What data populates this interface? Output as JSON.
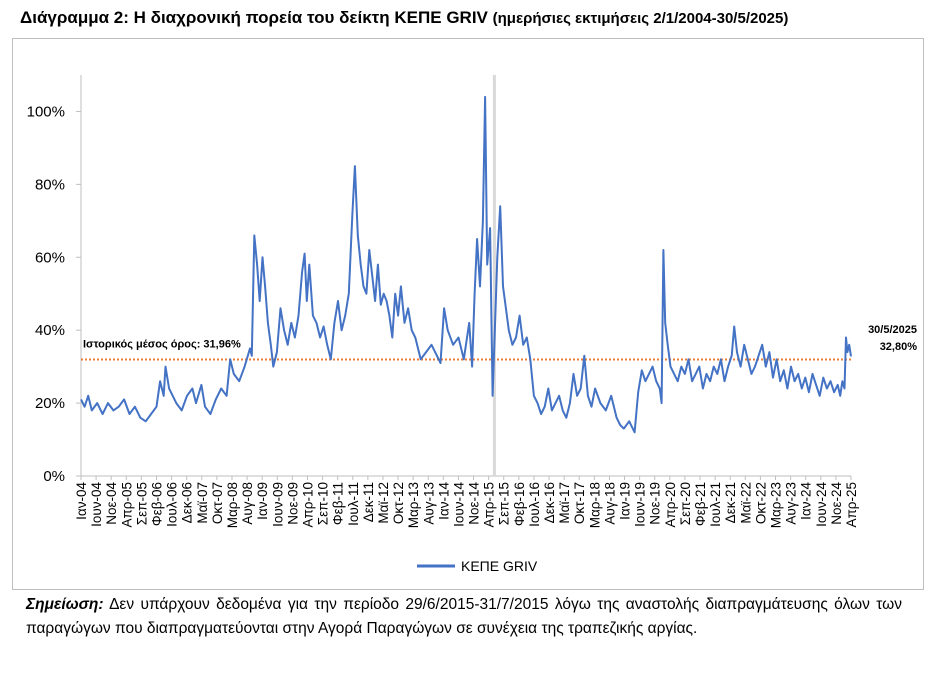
{
  "title": {
    "main": "Διάγραμμα 2: Η διαχρονική πορεία του δείκτη ΚΕΠΕ GRIV",
    "sub": "(ημερήσιες εκτιμήσεις 2/1/2004-30/5/2025)"
  },
  "chart_data": {
    "type": "line",
    "title": "Διάγραμμα 2: Η διαχρονική πορεία του δείκτη ΚΕΠΕ GRIV",
    "xlabel": "",
    "ylabel": "",
    "ylim": [
      0,
      110
    ],
    "y_ticks": [
      0,
      20,
      40,
      60,
      80,
      100
    ],
    "y_tick_labels": [
      "0%",
      "20%",
      "40%",
      "60%",
      "80%",
      "100%"
    ],
    "x_range": [
      2004.0,
      2025.42
    ],
    "x_tick_labels": [
      "Ιαν-04",
      "Ιουν-04",
      "Νοε-04",
      "Απρ-05",
      "Σεπ-05",
      "Φεβ-06",
      "Ιουλ-06",
      "Δεκ-06",
      "Μαϊ-07",
      "Οκτ-07",
      "Μαρ-08",
      "Αυγ-08",
      "Ιαν-09",
      "Ιουν-09",
      "Νοε-09",
      "Απρ-10",
      "Σεπ-10",
      "Φεβ-11",
      "Ιουλ-11",
      "Δεκ-11",
      "Μαϊ-12",
      "Οκτ-12",
      "Μαρ-13",
      "Αυγ-13",
      "Ιαν-14",
      "Ιουν-14",
      "Νοε-14",
      "Απρ-15",
      "Σεπ-15",
      "Φεβ-16",
      "Ιουλ-16",
      "Δεκ-16",
      "Μαϊ-17",
      "Οκτ-17",
      "Μαρ-18",
      "Αυγ-18",
      "Ιαν-19",
      "Ιουν-19",
      "Νοε-19",
      "Απρ-20",
      "Σεπ-20",
      "Φεβ-21",
      "Ιουλ-21",
      "Δεκ-21",
      "Μαϊ-22",
      "Οκτ-22",
      "Μαρ-23",
      "Αυγ-23",
      "Ιαν-24",
      "Ιουν-24",
      "Νοε-24",
      "Απρ-25"
    ],
    "grid": false,
    "legend_position": "bottom",
    "series": [
      {
        "name": "ΚΕΠΕ GRIV",
        "color": "#4472c4",
        "points": [
          [
            2004.0,
            21
          ],
          [
            2004.1,
            19
          ],
          [
            2004.2,
            22
          ],
          [
            2004.3,
            18
          ],
          [
            2004.45,
            20
          ],
          [
            2004.6,
            17
          ],
          [
            2004.75,
            20
          ],
          [
            2004.9,
            18
          ],
          [
            2005.05,
            19
          ],
          [
            2005.2,
            21
          ],
          [
            2005.35,
            17
          ],
          [
            2005.5,
            19
          ],
          [
            2005.65,
            16
          ],
          [
            2005.8,
            15
          ],
          [
            2005.95,
            17
          ],
          [
            2006.1,
            19
          ],
          [
            2006.2,
            26
          ],
          [
            2006.3,
            22
          ],
          [
            2006.35,
            30
          ],
          [
            2006.45,
            24
          ],
          [
            2006.55,
            22
          ],
          [
            2006.65,
            20
          ],
          [
            2006.8,
            18
          ],
          [
            2006.95,
            22
          ],
          [
            2007.1,
            24
          ],
          [
            2007.2,
            20
          ],
          [
            2007.35,
            25
          ],
          [
            2007.45,
            19
          ],
          [
            2007.6,
            17
          ],
          [
            2007.75,
            21
          ],
          [
            2007.9,
            24
          ],
          [
            2008.05,
            22
          ],
          [
            2008.15,
            32
          ],
          [
            2008.25,
            28
          ],
          [
            2008.4,
            26
          ],
          [
            2008.55,
            30
          ],
          [
            2008.7,
            35
          ],
          [
            2008.75,
            33
          ],
          [
            2008.82,
            66
          ],
          [
            2008.9,
            58
          ],
          [
            2008.97,
            48
          ],
          [
            2009.05,
            60
          ],
          [
            2009.12,
            52
          ],
          [
            2009.2,
            42
          ],
          [
            2009.28,
            36
          ],
          [
            2009.35,
            30
          ],
          [
            2009.45,
            34
          ],
          [
            2009.55,
            46
          ],
          [
            2009.65,
            40
          ],
          [
            2009.75,
            36
          ],
          [
            2009.85,
            42
          ],
          [
            2009.95,
            38
          ],
          [
            2010.05,
            44
          ],
          [
            2010.15,
            56
          ],
          [
            2010.22,
            61
          ],
          [
            2010.28,
            48
          ],
          [
            2010.35,
            58
          ],
          [
            2010.45,
            44
          ],
          [
            2010.55,
            42
          ],
          [
            2010.65,
            38
          ],
          [
            2010.75,
            41
          ],
          [
            2010.85,
            36
          ],
          [
            2010.95,
            32
          ],
          [
            2011.05,
            42
          ],
          [
            2011.15,
            48
          ],
          [
            2011.25,
            40
          ],
          [
            2011.35,
            44
          ],
          [
            2011.45,
            50
          ],
          [
            2011.55,
            72
          ],
          [
            2011.62,
            85
          ],
          [
            2011.7,
            66
          ],
          [
            2011.78,
            58
          ],
          [
            2011.86,
            52
          ],
          [
            2011.94,
            50
          ],
          [
            2012.02,
            62
          ],
          [
            2012.1,
            55
          ],
          [
            2012.18,
            48
          ],
          [
            2012.26,
            58
          ],
          [
            2012.34,
            47
          ],
          [
            2012.42,
            50
          ],
          [
            2012.5,
            48
          ],
          [
            2012.58,
            44
          ],
          [
            2012.66,
            38
          ],
          [
            2012.74,
            50
          ],
          [
            2012.82,
            44
          ],
          [
            2012.9,
            52
          ],
          [
            2013.0,
            42
          ],
          [
            2013.1,
            46
          ],
          [
            2013.2,
            40
          ],
          [
            2013.3,
            38
          ],
          [
            2013.45,
            32
          ],
          [
            2013.6,
            34
          ],
          [
            2013.75,
            36
          ],
          [
            2013.9,
            33
          ],
          [
            2014.0,
            31
          ],
          [
            2014.1,
            46
          ],
          [
            2014.2,
            40
          ],
          [
            2014.35,
            36
          ],
          [
            2014.5,
            38
          ],
          [
            2014.65,
            32
          ],
          [
            2014.8,
            42
          ],
          [
            2014.88,
            30
          ],
          [
            2014.95,
            50
          ],
          [
            2015.02,
            65
          ],
          [
            2015.1,
            52
          ],
          [
            2015.18,
            70
          ],
          [
            2015.24,
            104
          ],
          [
            2015.3,
            58
          ],
          [
            2015.38,
            68
          ],
          [
            2015.45,
            22
          ],
          [
            2015.58,
            60
          ],
          [
            2015.66,
            74
          ],
          [
            2015.74,
            52
          ],
          [
            2015.82,
            46
          ],
          [
            2015.9,
            40
          ],
          [
            2016.0,
            36
          ],
          [
            2016.1,
            38
          ],
          [
            2016.2,
            44
          ],
          [
            2016.3,
            36
          ],
          [
            2016.4,
            38
          ],
          [
            2016.5,
            32
          ],
          [
            2016.6,
            22
          ],
          [
            2016.7,
            20
          ],
          [
            2016.8,
            17
          ],
          [
            2016.9,
            19
          ],
          [
            2017.0,
            24
          ],
          [
            2017.1,
            18
          ],
          [
            2017.2,
            20
          ],
          [
            2017.3,
            22
          ],
          [
            2017.4,
            18
          ],
          [
            2017.5,
            16
          ],
          [
            2017.6,
            20
          ],
          [
            2017.7,
            28
          ],
          [
            2017.8,
            22
          ],
          [
            2017.9,
            24
          ],
          [
            2018.0,
            33
          ],
          [
            2018.1,
            22
          ],
          [
            2018.2,
            19
          ],
          [
            2018.3,
            24
          ],
          [
            2018.45,
            20
          ],
          [
            2018.6,
            18
          ],
          [
            2018.75,
            22
          ],
          [
            2018.9,
            16
          ],
          [
            2019.0,
            14
          ],
          [
            2019.1,
            13
          ],
          [
            2019.25,
            15
          ],
          [
            2019.4,
            12
          ],
          [
            2019.5,
            23
          ],
          [
            2019.6,
            29
          ],
          [
            2019.7,
            26
          ],
          [
            2019.8,
            28
          ],
          [
            2019.9,
            30
          ],
          [
            2020.0,
            26
          ],
          [
            2020.1,
            24
          ],
          [
            2020.15,
            20
          ],
          [
            2020.2,
            62
          ],
          [
            2020.25,
            42
          ],
          [
            2020.32,
            36
          ],
          [
            2020.4,
            30
          ],
          [
            2020.5,
            28
          ],
          [
            2020.6,
            26
          ],
          [
            2020.7,
            30
          ],
          [
            2020.8,
            28
          ],
          [
            2020.9,
            32
          ],
          [
            2021.0,
            26
          ],
          [
            2021.1,
            28
          ],
          [
            2021.2,
            30
          ],
          [
            2021.3,
            24
          ],
          [
            2021.4,
            28
          ],
          [
            2021.5,
            26
          ],
          [
            2021.6,
            30
          ],
          [
            2021.7,
            28
          ],
          [
            2021.8,
            32
          ],
          [
            2021.9,
            26
          ],
          [
            2022.0,
            30
          ],
          [
            2022.1,
            33
          ],
          [
            2022.17,
            41
          ],
          [
            2022.25,
            34
          ],
          [
            2022.35,
            30
          ],
          [
            2022.45,
            36
          ],
          [
            2022.55,
            32
          ],
          [
            2022.65,
            28
          ],
          [
            2022.75,
            30
          ],
          [
            2022.85,
            33
          ],
          [
            2022.95,
            36
          ],
          [
            2023.05,
            30
          ],
          [
            2023.15,
            34
          ],
          [
            2023.25,
            27
          ],
          [
            2023.35,
            32
          ],
          [
            2023.45,
            26
          ],
          [
            2023.55,
            29
          ],
          [
            2023.65,
            24
          ],
          [
            2023.75,
            30
          ],
          [
            2023.85,
            26
          ],
          [
            2023.95,
            28
          ],
          [
            2024.05,
            24
          ],
          [
            2024.15,
            27
          ],
          [
            2024.25,
            23
          ],
          [
            2024.35,
            28
          ],
          [
            2024.45,
            25
          ],
          [
            2024.55,
            22
          ],
          [
            2024.65,
            27
          ],
          [
            2024.75,
            24
          ],
          [
            2024.85,
            26
          ],
          [
            2024.95,
            23
          ],
          [
            2025.05,
            25
          ],
          [
            2025.12,
            22
          ],
          [
            2025.18,
            26
          ],
          [
            2025.24,
            24
          ],
          [
            2025.28,
            38
          ],
          [
            2025.32,
            34
          ],
          [
            2025.37,
            36
          ],
          [
            2025.42,
            32.8
          ]
        ]
      }
    ],
    "average_line": {
      "value": 31.96,
      "label": "Ιστορικός μέσος όρος: 31,96%",
      "color": "#ed7d31"
    },
    "gap_marker": {
      "x": 2015.5,
      "color": "#d9d9d9"
    },
    "end_annotation": {
      "date": "30/5/2025",
      "value_label": "32,80%"
    }
  },
  "note": {
    "label": "Σημείωση:",
    "text": "Δεν υπάρχουν δεδομένα για την περίοδο 29/6/2015-31/7/2015 λόγω της αναστολής διαπραγμάτευσης όλων των παραγώγων που διαπραγματεύονται στην Αγορά Παραγώγων σε συνέχεια της τραπεζικής αργίας."
  }
}
